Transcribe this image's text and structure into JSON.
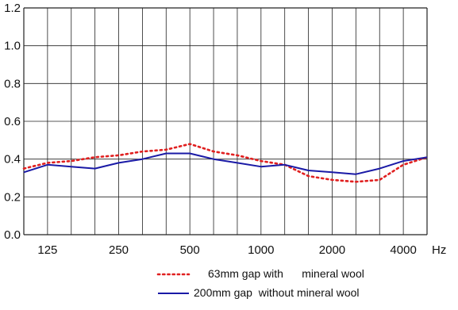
{
  "chart_data": {
    "type": "line",
    "title": "",
    "xlabel": "",
    "ylabel": "",
    "x_unit_label": "Hz",
    "grid": true,
    "legend_position": "bottom-right",
    "ylim": [
      0.0,
      1.2
    ],
    "y_ticks": [
      "0.0",
      "0.2",
      "0.4",
      "0.6",
      "0.8",
      "1.0",
      "1.2"
    ],
    "categories": [
      "100",
      "125",
      "160",
      "200",
      "250",
      "315",
      "400",
      "500",
      "630",
      "800",
      "1000",
      "1250",
      "1600",
      "2000",
      "2500",
      "3150",
      "4000",
      "5000"
    ],
    "x_tick_labels": [
      "125",
      "250",
      "500",
      "1000",
      "2000",
      "4000"
    ],
    "series": [
      {
        "name": "63mm gap with      mineral wool",
        "color": "#e02020",
        "style": "dotted",
        "values": [
          0.35,
          0.38,
          0.39,
          0.41,
          0.42,
          0.44,
          0.45,
          0.48,
          0.44,
          0.42,
          0.39,
          0.37,
          0.31,
          0.29,
          0.28,
          0.29,
          0.37,
          0.41
        ]
      },
      {
        "name": "200mm gap  without mineral wool",
        "color": "#1a1aa6",
        "style": "solid",
        "values": [
          0.33,
          0.37,
          0.36,
          0.35,
          0.38,
          0.4,
          0.43,
          0.43,
          0.4,
          0.38,
          0.36,
          0.37,
          0.34,
          0.33,
          0.32,
          0.35,
          0.39,
          0.41
        ]
      }
    ]
  }
}
